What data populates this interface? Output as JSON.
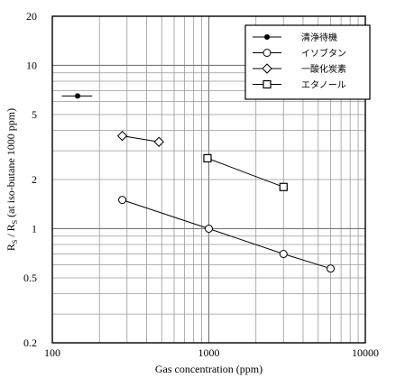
{
  "chart_data": {
    "type": "scatter",
    "x_scale": "log",
    "y_scale": "log",
    "xlim": [
      100,
      10000
    ],
    "ylim": [
      0.2,
      20
    ],
    "grid": true,
    "legend_position": "top-right",
    "xlabel": "Gas concentration (ppm)",
    "ylabel": "RS / RS (at iso-butane 1000 ppm)",
    "ylabel_parts": {
      "r1": "R",
      "s1": "S",
      "slash": " / R",
      "s2": "S",
      "rest": " (at iso-butane 1000 ppm)"
    },
    "x_ticks": [
      {
        "value": 100,
        "label": "100"
      },
      {
        "value": 1000,
        "label": "1000"
      },
      {
        "value": 10000,
        "label": "10000"
      }
    ],
    "y_ticks": [
      {
        "value": 0.2,
        "label": "0.2"
      },
      {
        "value": 0.5,
        "label": "0.5"
      },
      {
        "value": 1,
        "label": "1"
      },
      {
        "value": 2,
        "label": "2"
      },
      {
        "value": 5,
        "label": "5"
      },
      {
        "value": 10,
        "label": "10"
      },
      {
        "value": 20,
        "label": "20"
      }
    ],
    "series": [
      {
        "name": "清浄待機",
        "marker": "dot",
        "connected": false,
        "x_error": [
          115,
          180
        ],
        "points": [
          {
            "x": 145,
            "y": 6.5
          }
        ]
      },
      {
        "name": "イソブタン",
        "marker": "circle",
        "connected": true,
        "points": [
          {
            "x": 280,
            "y": 1.5
          },
          {
            "x": 1000,
            "y": 1.0
          },
          {
            "x": 3000,
            "y": 0.7
          },
          {
            "x": 6000,
            "y": 0.57
          }
        ]
      },
      {
        "name": "一酸化炭素",
        "marker": "diamond",
        "connected": true,
        "points": [
          {
            "x": 280,
            "y": 3.7
          },
          {
            "x": 480,
            "y": 3.4
          }
        ]
      },
      {
        "name": "エタノール",
        "marker": "square",
        "connected": true,
        "points": [
          {
            "x": 980,
            "y": 2.7
          },
          {
            "x": 3000,
            "y": 1.8
          }
        ]
      }
    ]
  }
}
